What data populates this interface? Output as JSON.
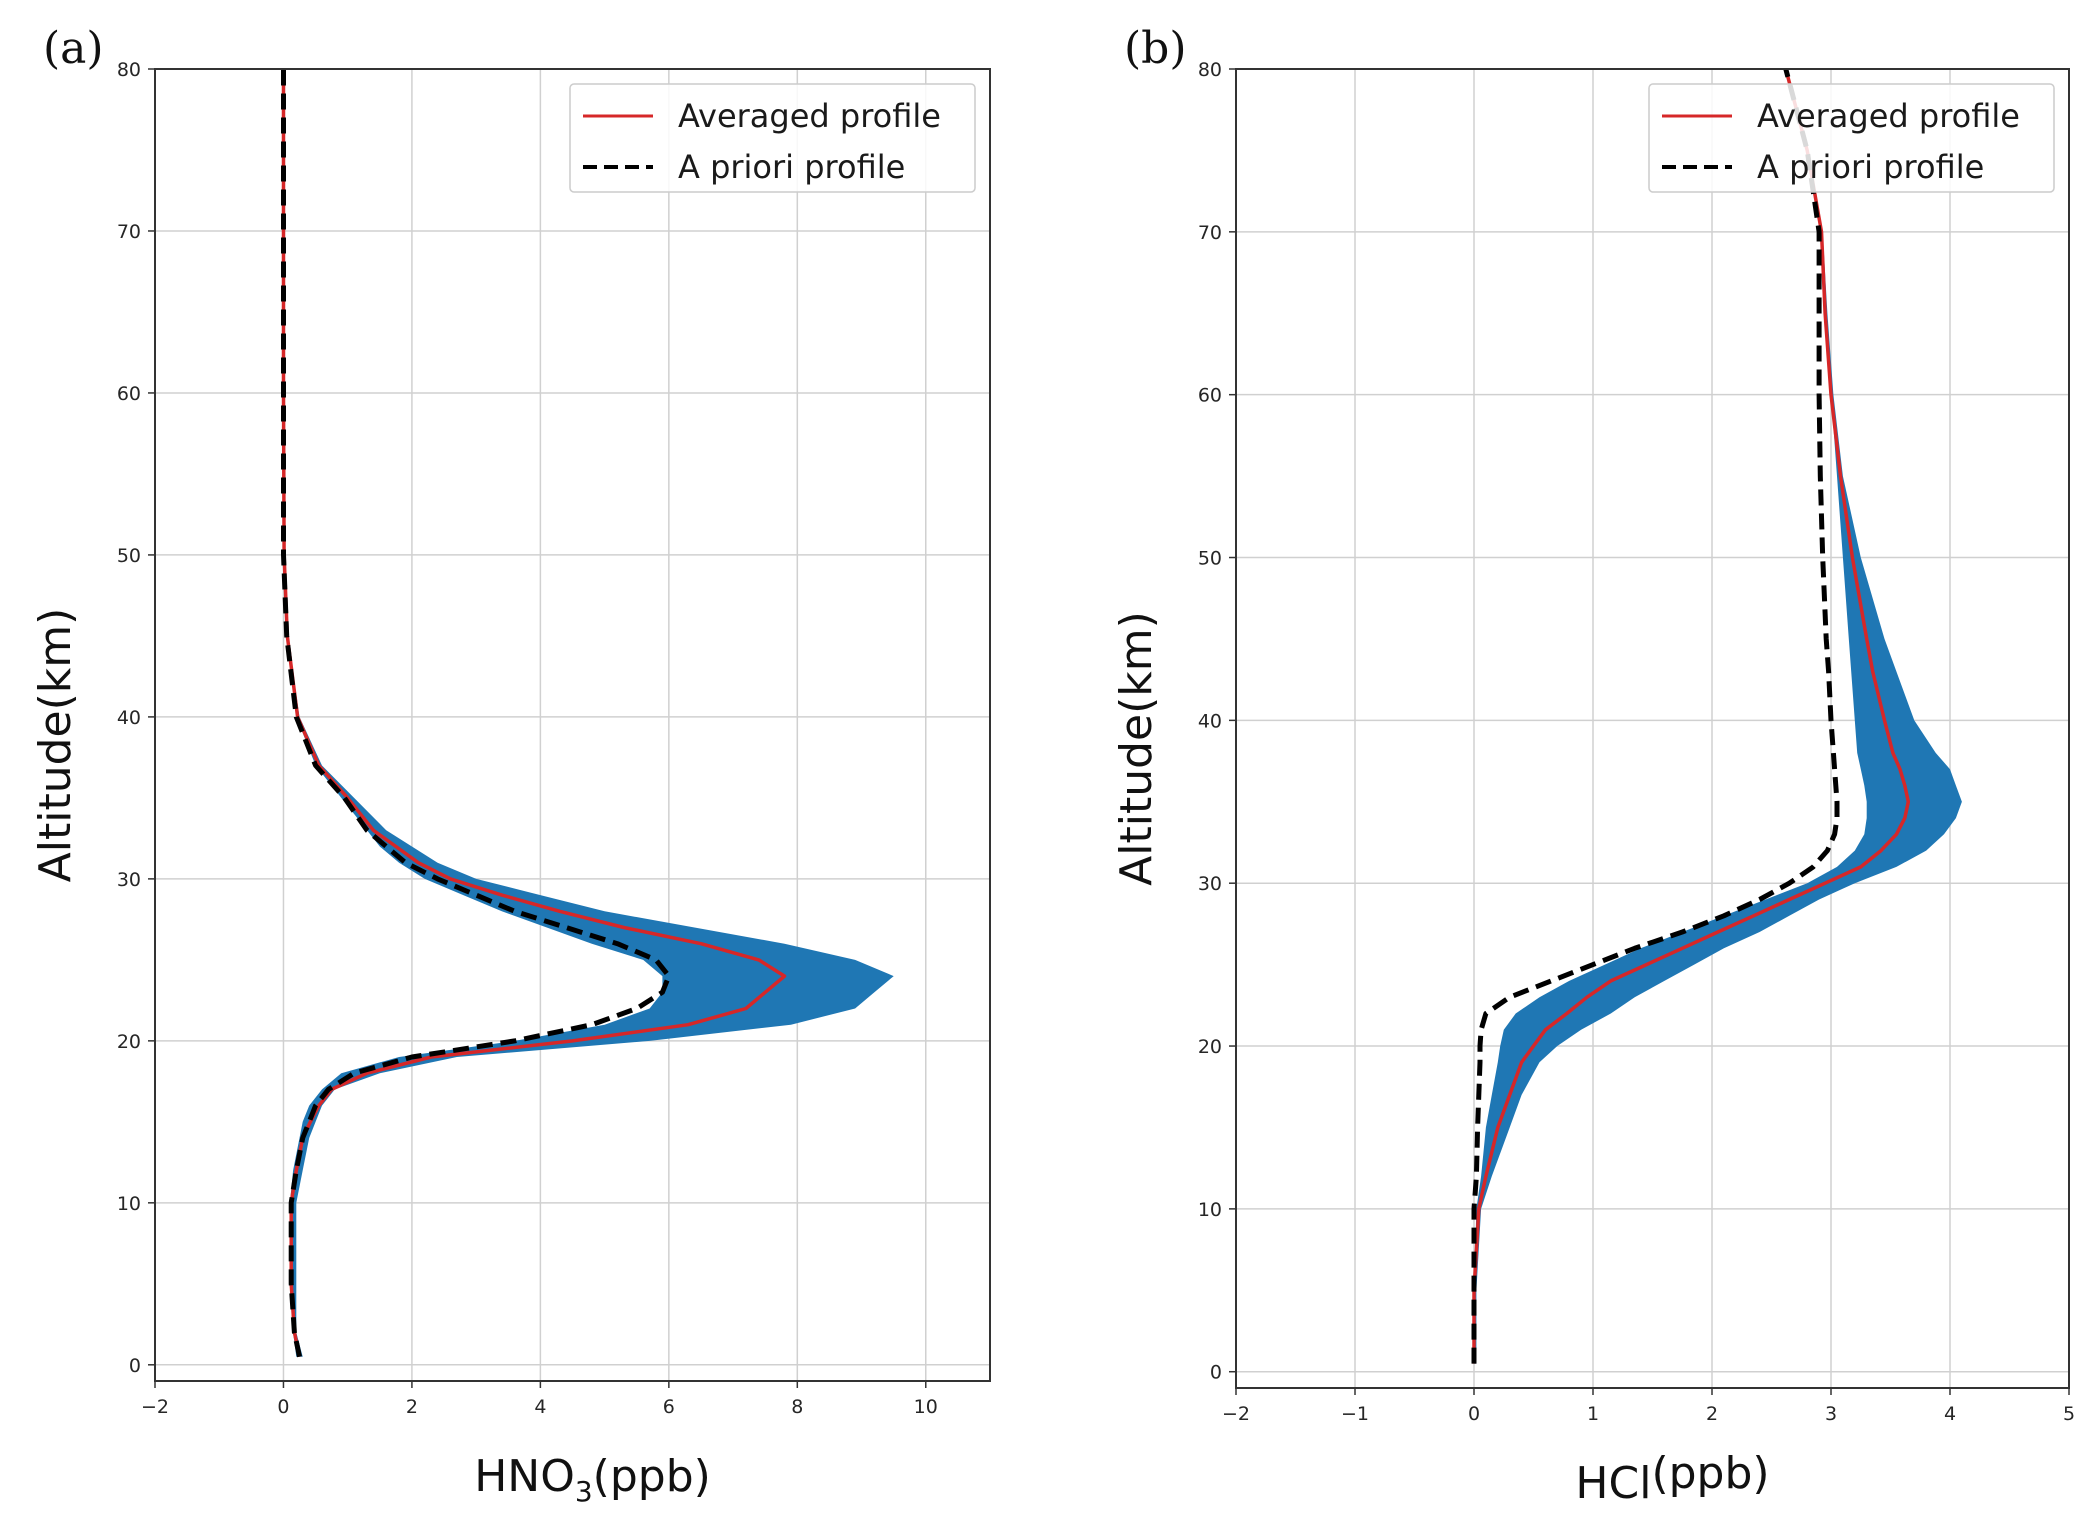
{
  "chart_data": [
    {
      "type": "line",
      "panel_label": "(a)",
      "xlabel_main": "HNO",
      "xlabel_sub": "3",
      "xlabel_unit": "(ppb)",
      "ylabel": "Altitude(km)",
      "xlim": [
        -2,
        11
      ],
      "ylim": [
        -1,
        80
      ],
      "xticks": [
        -2,
        0,
        2,
        4,
        6,
        8,
        10
      ],
      "xtick_labels": [
        "−2",
        "0",
        "2",
        "4",
        "6",
        "8",
        "10"
      ],
      "yticks": [
        0,
        10,
        20,
        30,
        40,
        50,
        60,
        70,
        80
      ],
      "ytick_labels": [
        "0",
        "10",
        "20",
        "30",
        "40",
        "50",
        "60",
        "70",
        "80"
      ],
      "grid": true,
      "legend_position": "top-right",
      "legend": [
        "Averaged profile",
        "A priori profile"
      ],
      "band": {
        "name": "spread",
        "color": "#1f77b4",
        "y": [
          0.5,
          2,
          5,
          8,
          10,
          12,
          14,
          15,
          16,
          17,
          18,
          19,
          20,
          21,
          22,
          23,
          24,
          25,
          26,
          27,
          28,
          29,
          30,
          31,
          32,
          33,
          35,
          37,
          40,
          45,
          50,
          60,
          70,
          80
        ],
        "lower": [
          0.2,
          0.15,
          0.1,
          0.1,
          0.1,
          0.15,
          0.25,
          0.3,
          0.4,
          0.6,
          0.9,
          1.8,
          3.6,
          5.0,
          5.7,
          5.9,
          5.9,
          5.6,
          4.8,
          4.1,
          3.4,
          2.8,
          2.2,
          1.8,
          1.5,
          1.3,
          0.9,
          0.5,
          0.2,
          0.05,
          0.0,
          0.0,
          0.0,
          0.0
        ],
        "upper": [
          0.3,
          0.2,
          0.2,
          0.2,
          0.2,
          0.3,
          0.4,
          0.5,
          0.6,
          0.8,
          1.5,
          2.7,
          5.7,
          7.9,
          8.9,
          9.2,
          9.5,
          8.9,
          7.8,
          6.4,
          5.0,
          4.0,
          3.0,
          2.4,
          2.0,
          1.6,
          1.1,
          0.6,
          0.25,
          0.07,
          0.02,
          0.01,
          0.01,
          0.01
        ]
      },
      "series": [
        {
          "name": "Averaged profile",
          "color": "#d62728",
          "style": "solid",
          "y": [
            0.5,
            2,
            5,
            8,
            10,
            12,
            14,
            15,
            16,
            17,
            18,
            19,
            20,
            21,
            22,
            23,
            24,
            25,
            26,
            27,
            28,
            29,
            30,
            31,
            32,
            33,
            35,
            37,
            40,
            45,
            50,
            60,
            70,
            80
          ],
          "values": [
            0.25,
            0.17,
            0.12,
            0.12,
            0.12,
            0.2,
            0.3,
            0.42,
            0.55,
            0.75,
            1.3,
            2.3,
            4.5,
            6.3,
            7.2,
            7.5,
            7.8,
            7.4,
            6.5,
            5.3,
            4.3,
            3.4,
            2.6,
            2.1,
            1.75,
            1.4,
            1.0,
            0.55,
            0.22,
            0.06,
            0.01,
            0.0,
            0.0,
            0.0
          ]
        },
        {
          "name": "A priori profile",
          "color": "#000000",
          "style": "dashed",
          "y": [
            0.5,
            2,
            5,
            8,
            10,
            12,
            14,
            15,
            16,
            17,
            18,
            19,
            20,
            21,
            22,
            23,
            24,
            25,
            26,
            27,
            28,
            29,
            30,
            31,
            32,
            33,
            35,
            37,
            40,
            45,
            50,
            60,
            70,
            80
          ],
          "values": [
            0.25,
            0.17,
            0.12,
            0.12,
            0.12,
            0.2,
            0.3,
            0.4,
            0.5,
            0.7,
            1.1,
            2.0,
            3.6,
            4.8,
            5.5,
            5.9,
            6.0,
            5.8,
            5.2,
            4.4,
            3.6,
            3.0,
            2.4,
            1.9,
            1.6,
            1.3,
            0.95,
            0.5,
            0.2,
            0.05,
            0.0,
            0.0,
            0.0,
            0.0
          ]
        }
      ]
    },
    {
      "type": "line",
      "panel_label": "(b)",
      "xlabel_main": "HCl",
      "xlabel_sub": "",
      "xlabel_unit": "(ppb)",
      "ylabel": "Altitude(km)",
      "xlim": [
        -2,
        5
      ],
      "ylim": [
        -1,
        80
      ],
      "xticks": [
        -2,
        -1,
        0,
        1,
        2,
        3,
        4,
        5
      ],
      "xtick_labels": [
        "−2",
        "−1",
        "0",
        "1",
        "2",
        "3",
        "4",
        "5"
      ],
      "yticks": [
        0,
        10,
        20,
        30,
        40,
        50,
        60,
        70,
        80
      ],
      "ytick_labels": [
        "0",
        "10",
        "20",
        "30",
        "40",
        "50",
        "60",
        "70",
        "80"
      ],
      "grid": true,
      "legend_position": "top-right",
      "legend": [
        "Averaged profile",
        "A priori profile"
      ],
      "band": {
        "name": "spread",
        "color": "#1f77b4",
        "y": [
          0.5,
          5,
          10,
          12,
          15,
          17,
          19,
          20,
          21,
          22,
          23,
          24,
          25,
          26,
          27,
          28,
          29,
          30,
          31,
          32,
          33,
          34,
          35,
          36,
          37,
          38,
          40,
          43,
          45,
          50,
          55,
          60,
          65,
          70,
          75,
          80
        ],
        "lower": [
          0.0,
          0.0,
          0.02,
          0.06,
          0.1,
          0.15,
          0.2,
          0.22,
          0.25,
          0.35,
          0.55,
          0.8,
          1.1,
          1.4,
          1.75,
          2.1,
          2.45,
          2.8,
          3.05,
          3.2,
          3.28,
          3.3,
          3.3,
          3.28,
          3.25,
          3.22,
          3.2,
          3.17,
          3.15,
          3.1,
          3.05,
          3.0,
          2.95,
          2.92,
          2.8,
          2.62
        ],
        "upper": [
          0.02,
          0.02,
          0.06,
          0.15,
          0.3,
          0.4,
          0.55,
          0.7,
          0.9,
          1.15,
          1.35,
          1.6,
          1.85,
          2.1,
          2.4,
          2.65,
          2.9,
          3.2,
          3.55,
          3.8,
          3.95,
          4.05,
          4.1,
          4.05,
          4.0,
          3.88,
          3.7,
          3.55,
          3.45,
          3.25,
          3.1,
          3.02,
          2.97,
          2.93,
          2.8,
          2.62
        ]
      },
      "series": [
        {
          "name": "Averaged profile",
          "color": "#d62728",
          "style": "solid",
          "y": [
            0.5,
            5,
            10,
            12,
            15,
            17,
            19,
            20,
            21,
            22,
            23,
            24,
            25,
            26,
            27,
            28,
            29,
            30,
            31,
            32,
            33,
            34,
            35,
            36,
            37,
            38,
            40,
            43,
            45,
            50,
            55,
            60,
            65,
            70,
            75,
            80
          ],
          "values": [
            0.0,
            0.0,
            0.04,
            0.1,
            0.2,
            0.3,
            0.4,
            0.5,
            0.6,
            0.78,
            0.95,
            1.15,
            1.45,
            1.75,
            2.05,
            2.35,
            2.65,
            2.95,
            3.25,
            3.42,
            3.55,
            3.62,
            3.65,
            3.62,
            3.58,
            3.52,
            3.45,
            3.35,
            3.3,
            3.18,
            3.08,
            3.0,
            2.95,
            2.92,
            2.8,
            2.62
          ]
        },
        {
          "name": "A priori profile",
          "color": "#000000",
          "style": "dashed",
          "y": [
            0.5,
            5,
            10,
            12,
            15,
            17,
            19,
            20,
            21,
            22,
            23,
            24,
            25,
            26,
            27,
            28,
            29,
            30,
            31,
            32,
            33,
            34,
            35,
            36,
            37,
            38,
            40,
            43,
            45,
            50,
            55,
            60,
            65,
            70,
            75,
            80
          ],
          "values": [
            0.0,
            0.0,
            0.0,
            0.02,
            0.03,
            0.04,
            0.05,
            0.05,
            0.06,
            0.1,
            0.3,
            0.65,
            1.0,
            1.35,
            1.75,
            2.1,
            2.4,
            2.65,
            2.85,
            2.97,
            3.03,
            3.05,
            3.05,
            3.04,
            3.03,
            3.02,
            3.0,
            2.98,
            2.96,
            2.93,
            2.91,
            2.9,
            2.9,
            2.9,
            2.8,
            2.62
          ]
        }
      ]
    }
  ]
}
